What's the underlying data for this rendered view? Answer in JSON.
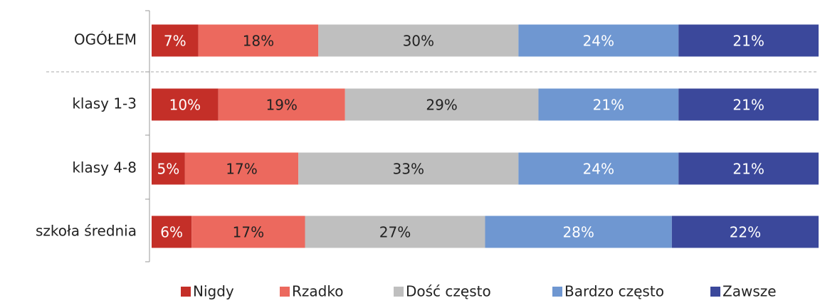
{
  "chart_data": {
    "type": "stacked_barh",
    "categories": [
      "OGÓŁEM",
      "klasy 1-3",
      "klasy 4-8",
      "szkoła średnia"
    ],
    "series": [
      {
        "name": "Nigdy",
        "color": "#c42f28",
        "values": [
          7,
          10,
          5,
          6
        ],
        "value_labels": [
          "7%",
          "10%",
          "5%",
          "6%"
        ]
      },
      {
        "name": "Rzadko",
        "color": "#ec695e",
        "values": [
          18,
          19,
          17,
          17
        ],
        "value_labels": [
          "18%",
          "19%",
          "17%",
          "17%"
        ]
      },
      {
        "name": "Dość często",
        "color": "#bfbfbf",
        "values": [
          30,
          29,
          33,
          27
        ],
        "value_labels": [
          "30%",
          "29%",
          "33%",
          "27%"
        ]
      },
      {
        "name": "Bardzo często",
        "color": "#6f97d1",
        "values": [
          24,
          21,
          24,
          28
        ],
        "value_labels": [
          "24%",
          "21%",
          "24%",
          "28%"
        ]
      },
      {
        "name": "Zawsze",
        "color": "#3b489b",
        "values": [
          21,
          21,
          21,
          22
        ],
        "value_labels": [
          "21%",
          "21%",
          "21%",
          "22%"
        ]
      }
    ],
    "legend": "bottom"
  }
}
